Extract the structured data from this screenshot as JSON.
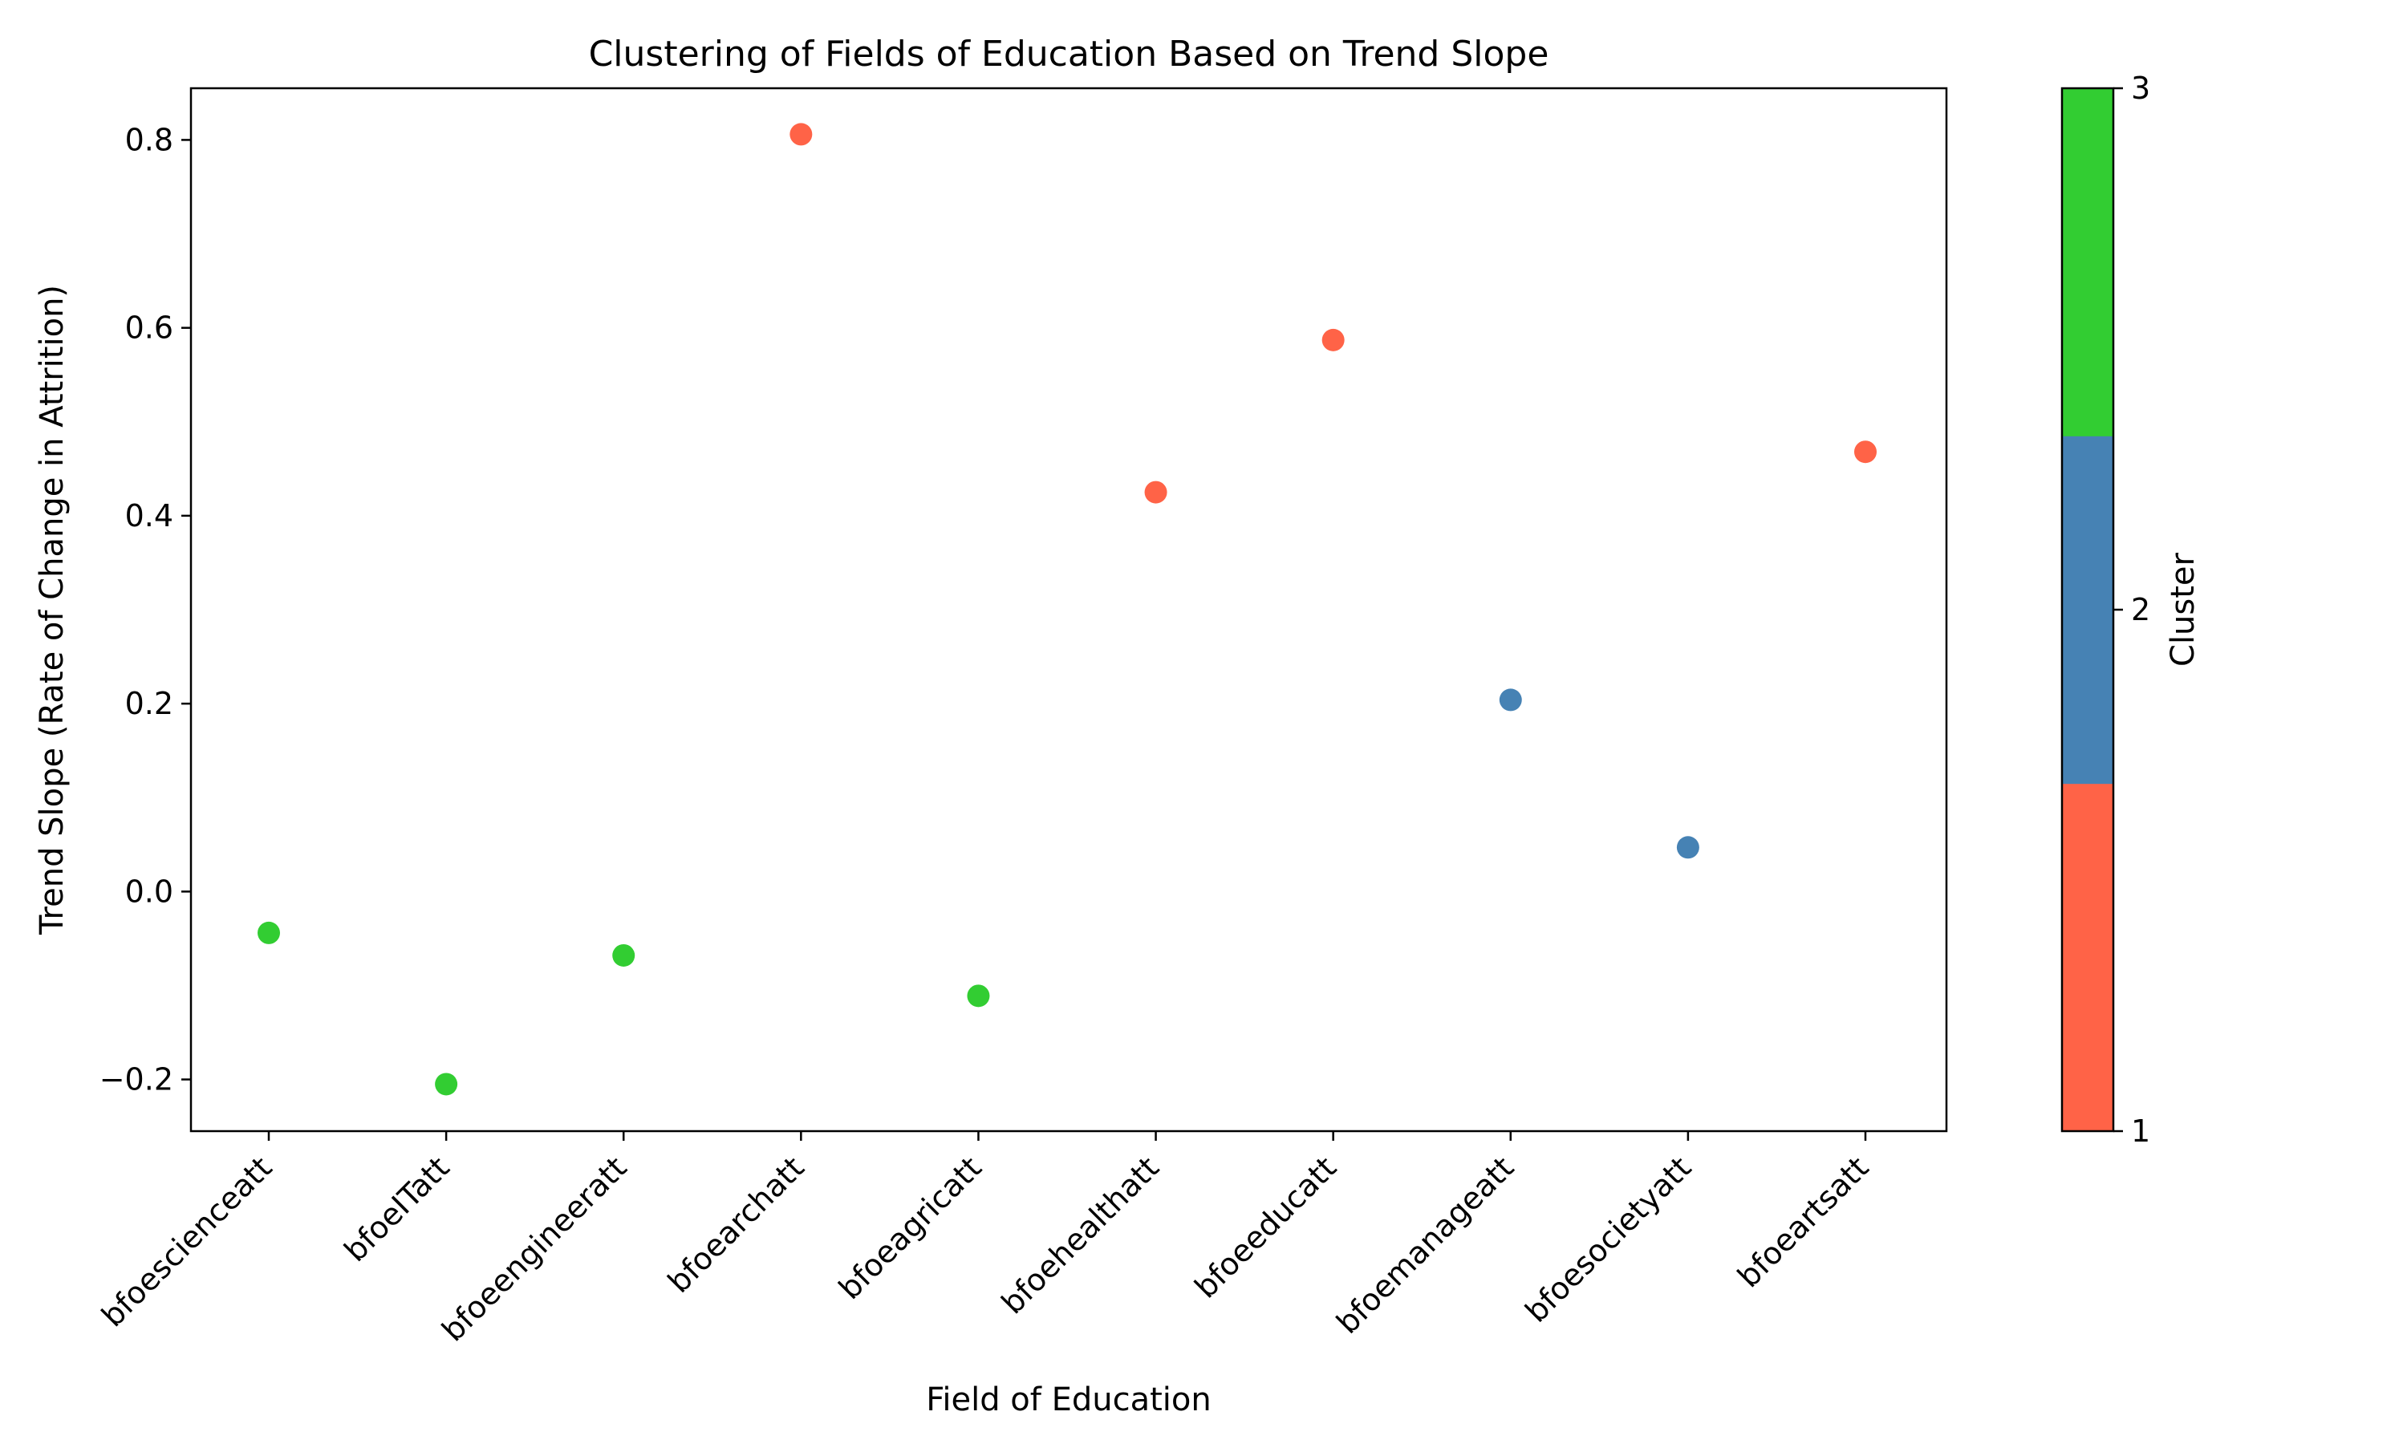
{
  "chart_data": {
    "type": "scatter",
    "title": "Clustering of Fields of Education Based on Trend Slope",
    "xlabel": "Field of Education",
    "ylabel": "Trend Slope (Rate of Change in Attrition)",
    "categories": [
      "bfoescienceatt",
      "bfoeITatt",
      "bfoeengineeratt",
      "bfoearchatt",
      "bfoeagricatt",
      "bfoehealthatt",
      "bfoeeducatt",
      "bfoemanageatt",
      "bfoesocietyatt",
      "bfoeartsatt"
    ],
    "values": [
      -0.044,
      -0.205,
      -0.068,
      0.806,
      -0.111,
      0.425,
      0.587,
      0.204,
      0.047,
      0.468
    ],
    "clusters": [
      3,
      3,
      3,
      1,
      3,
      1,
      1,
      2,
      2,
      1
    ],
    "ylim": [
      -0.255,
      0.855
    ],
    "yticks": [
      -0.2,
      0.0,
      0.2,
      0.4,
      0.6,
      0.8
    ],
    "ytick_labels": [
      "−0.2",
      "0.0",
      "0.2",
      "0.4",
      "0.6",
      "0.8"
    ],
    "grid": false,
    "colorbar": {
      "label": "Cluster",
      "range": [
        1,
        3
      ],
      "ticks": [
        "1",
        "2",
        "3"
      ],
      "colors": [
        "#ff6347",
        "#4682b4",
        "#32cd32"
      ]
    }
  }
}
